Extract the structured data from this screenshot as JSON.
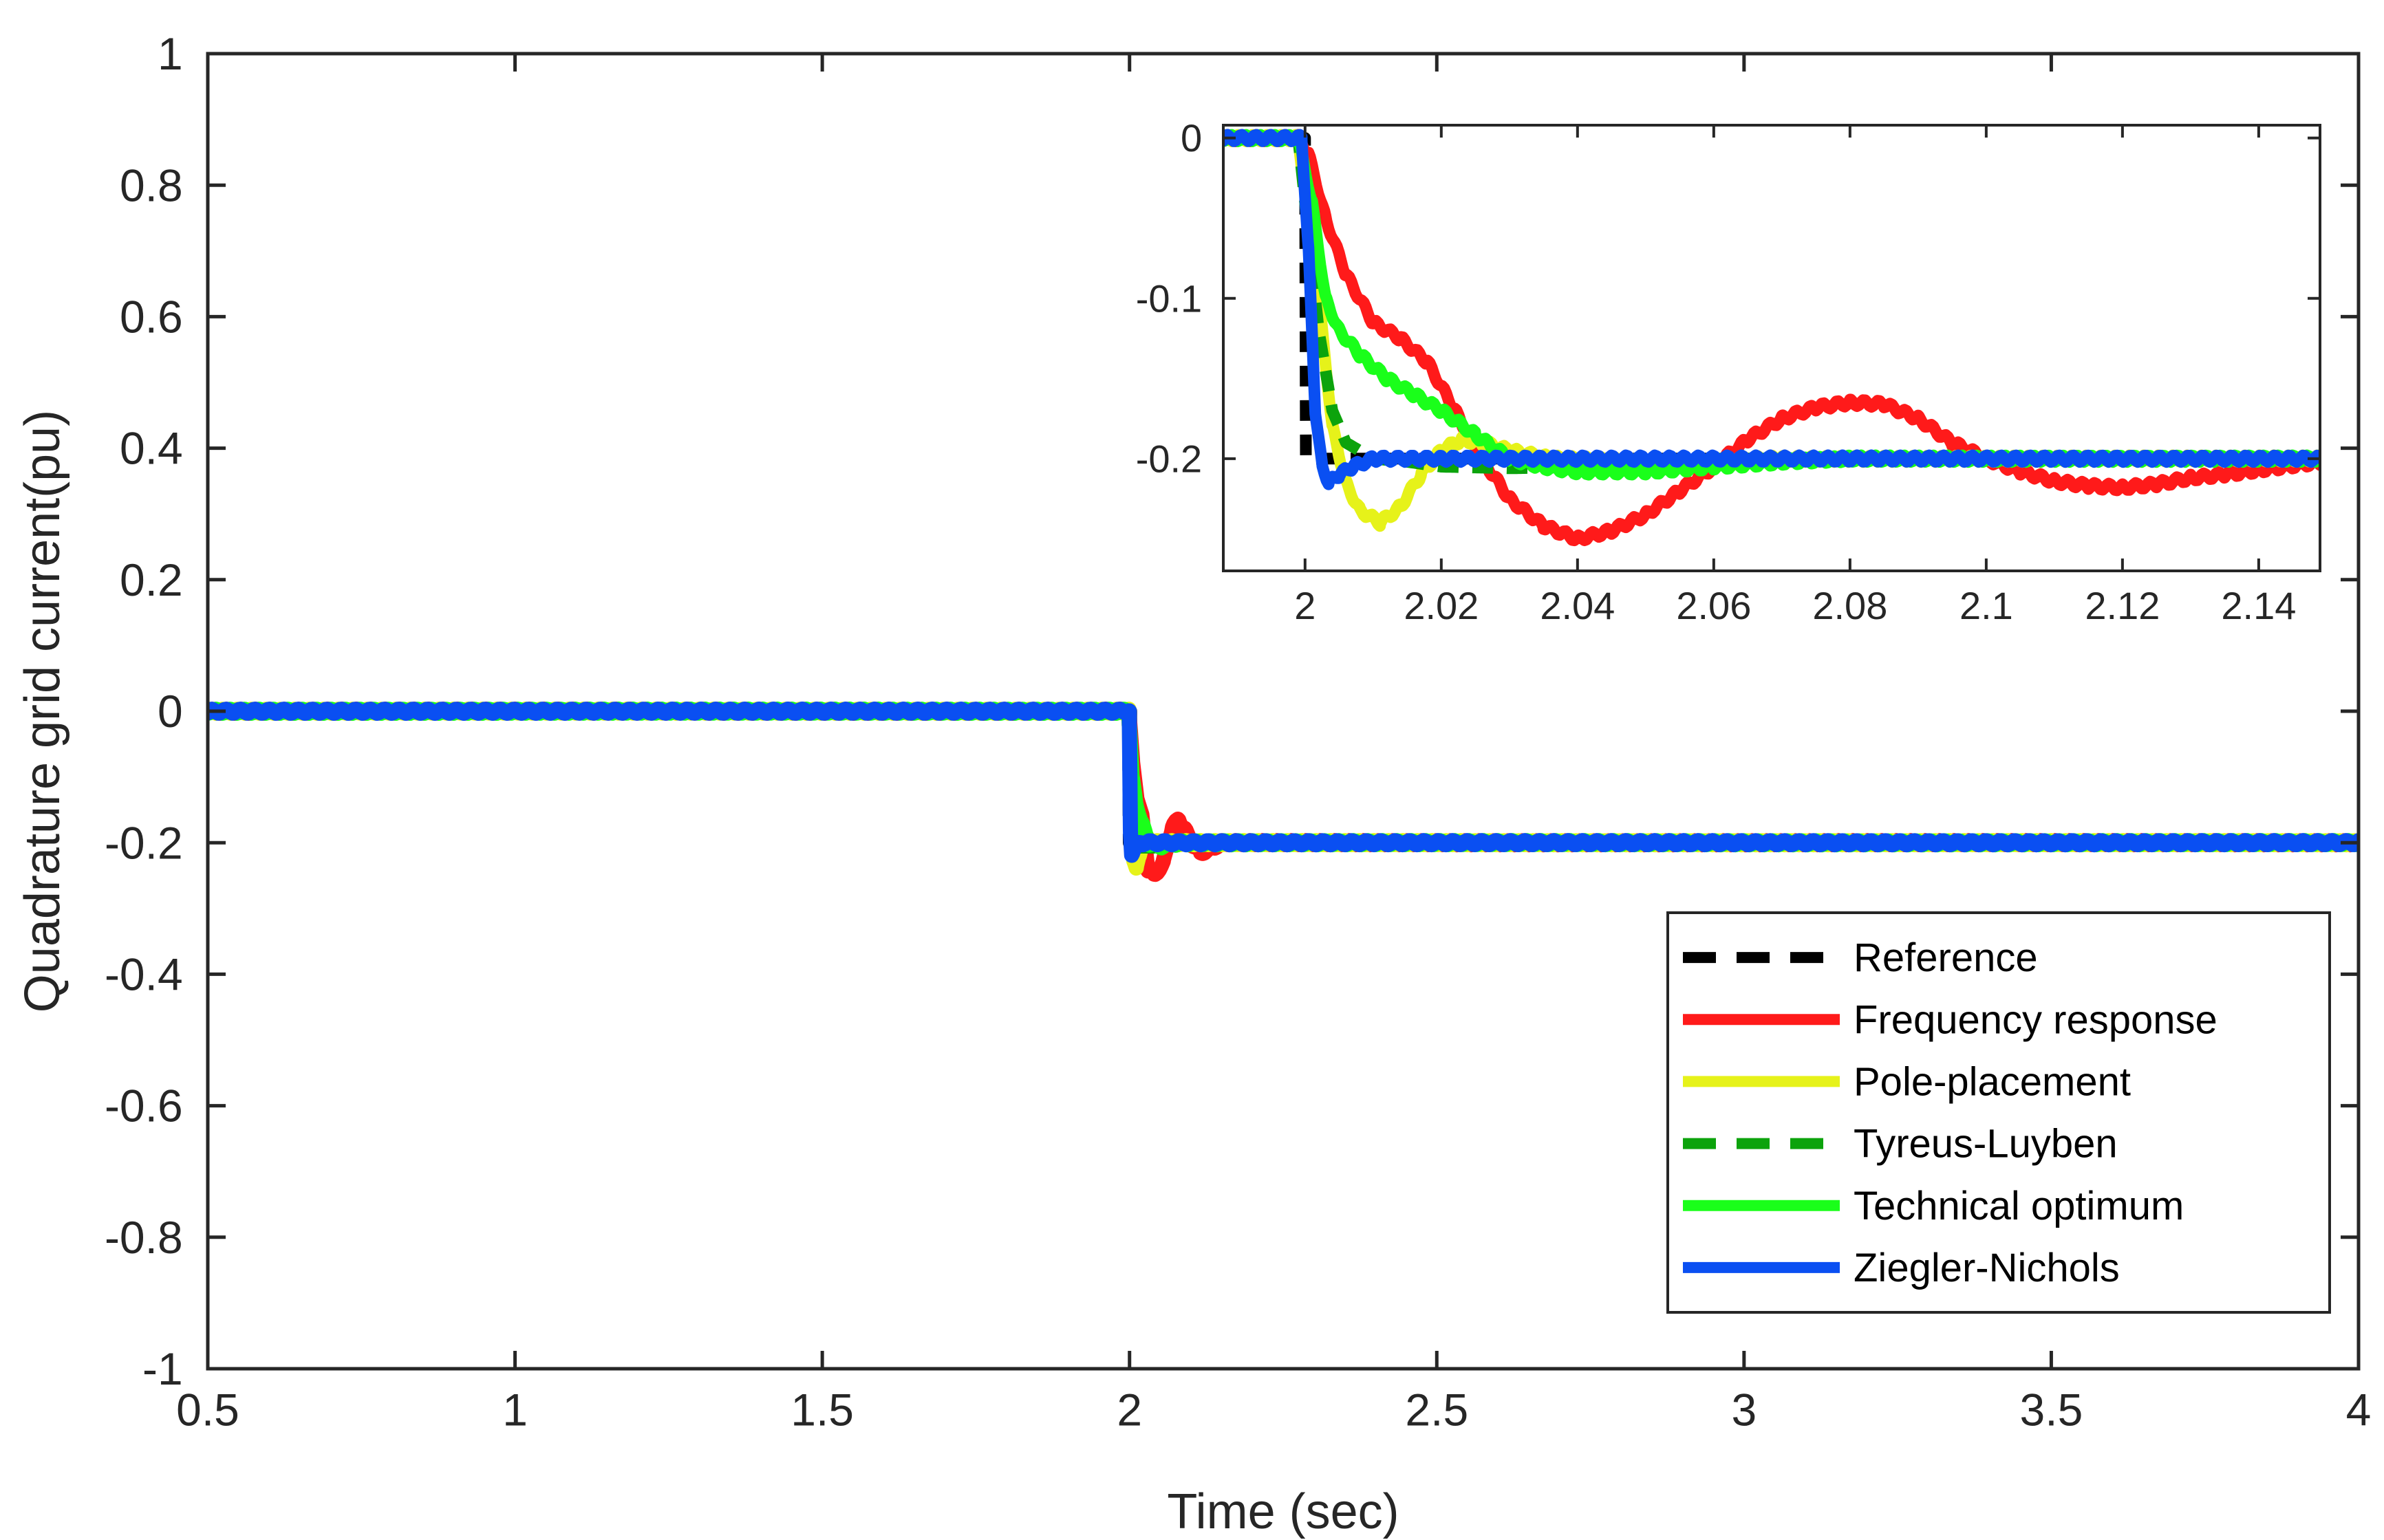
{
  "chart_data": [
    {
      "type": "line",
      "role": "main",
      "xlabel": "Time (sec)",
      "ylabel": "Quadrature grid current(pu)",
      "xlim": [
        0.5,
        4
      ],
      "ylim": [
        -1,
        1
      ],
      "xticks": [
        0.5,
        1,
        1.5,
        2,
        2.5,
        3,
        3.5,
        4
      ],
      "xtick_labels": [
        "0.5",
        "1",
        "1.5",
        "2",
        "2.5",
        "3",
        "3.5",
        "4"
      ],
      "yticks": [
        -1,
        -0.8,
        -0.6,
        -0.4,
        -0.2,
        0,
        0.2,
        0.4,
        0.6,
        0.8,
        1
      ],
      "ytick_labels": [
        "-1",
        "-0.8",
        "-0.6",
        "-0.4",
        "-0.2",
        "0",
        "0.2",
        "0.4",
        "0.6",
        "0.8",
        "1"
      ],
      "grid": false,
      "legend_position": "lower-right",
      "series": [
        {
          "name": "Reference",
          "color": "#000000",
          "dash": "dashed",
          "points": [
            [
              0.5,
              0
            ],
            [
              2,
              0
            ],
            [
              2,
              -0.2
            ],
            [
              4,
              -0.2
            ]
          ]
        },
        {
          "name": "Frequency response",
          "color": "#ff1a1a",
          "dash": "solid",
          "points": [
            [
              0.5,
              0
            ],
            [
              1.999,
              0
            ],
            [
              2.005,
              -0.08
            ],
            [
              2.012,
              -0.13
            ],
            [
              2.02,
              -0.16
            ],
            [
              2.03,
              -0.24
            ],
            [
              2.04,
              -0.25
            ],
            [
              2.055,
              -0.23
            ],
            [
              2.07,
              -0.175
            ],
            [
              2.08,
              -0.165
            ],
            [
              2.09,
              -0.18
            ],
            [
              2.1,
              -0.2
            ],
            [
              2.115,
              -0.215
            ],
            [
              2.13,
              -0.21
            ],
            [
              2.15,
              -0.2
            ],
            [
              2.2,
              -0.2
            ],
            [
              4,
              -0.2
            ]
          ]
        },
        {
          "name": "Pole-placement",
          "color": "#e6f21a",
          "dash": "solid",
          "points": [
            [
              0.5,
              0
            ],
            [
              1.999,
              0
            ],
            [
              2.004,
              -0.19
            ],
            [
              2.007,
              -0.225
            ],
            [
              2.011,
              -0.24
            ],
            [
              2.016,
              -0.22
            ],
            [
              2.022,
              -0.19
            ],
            [
              2.03,
              -0.195
            ],
            [
              2.04,
              -0.2
            ],
            [
              4,
              -0.2
            ]
          ]
        },
        {
          "name": "Tyreus-Luyben",
          "color": "#0ca30c",
          "dash": "dashed",
          "points": [
            [
              0.5,
              0
            ],
            [
              1.999,
              0
            ],
            [
              2.003,
              -0.15
            ],
            [
              2.006,
              -0.19
            ],
            [
              2.012,
              -0.2
            ],
            [
              2.02,
              -0.205
            ],
            [
              2.04,
              -0.205
            ],
            [
              2.06,
              -0.2
            ],
            [
              4,
              -0.2
            ]
          ]
        },
        {
          "name": "Technical optimum",
          "color": "#1aff1a",
          "dash": "solid",
          "points": [
            [
              0.5,
              0
            ],
            [
              1.999,
              0
            ],
            [
              2.004,
              -0.1
            ],
            [
              2.01,
              -0.14
            ],
            [
              2.02,
              -0.17
            ],
            [
              2.03,
              -0.2
            ],
            [
              2.05,
              -0.205
            ],
            [
              2.08,
              -0.2
            ],
            [
              4,
              -0.2
            ]
          ]
        },
        {
          "name": "Ziegler-Nichols",
          "color": "#0a4ff2",
          "dash": "solid",
          "points": [
            [
              0.5,
              0
            ],
            [
              1.9995,
              0
            ],
            [
              2.0015,
              -0.19
            ],
            [
              2.0035,
              -0.22
            ],
            [
              2.006,
              -0.21
            ],
            [
              2.01,
              -0.205
            ],
            [
              2.02,
              -0.2
            ],
            [
              4,
              -0.2
            ]
          ]
        }
      ]
    },
    {
      "type": "line",
      "role": "inset",
      "xlim": [
        1.988,
        2.149
      ],
      "ylim": [
        -0.27,
        0.008
      ],
      "xticks": [
        2,
        2.02,
        2.04,
        2.06,
        2.08,
        2.1,
        2.12,
        2.14
      ],
      "xtick_labels": [
        "2",
        "2.02",
        "2.04",
        "2.06",
        "2.08",
        "2.1",
        "2.12",
        "2.14"
      ],
      "yticks": [
        -0.2,
        -0.1,
        0
      ],
      "ytick_labels": [
        "-0.2",
        "-0.1",
        "0"
      ],
      "grid": false,
      "series": [
        {
          "name": "Reference",
          "color": "#000000",
          "dash": "dashed",
          "points": [
            [
              1.988,
              0
            ],
            [
              2,
              0
            ],
            [
              2,
              -0.2
            ],
            [
              2.149,
              -0.2
            ]
          ]
        },
        {
          "name": "Frequency response",
          "color": "#ff1a1a",
          "dash": "solid",
          "points": [
            [
              1.988,
              0
            ],
            [
              1.999,
              0
            ],
            [
              2.0005,
              -0.01
            ],
            [
              2.003,
              -0.05
            ],
            [
              2.006,
              -0.085
            ],
            [
              2.01,
              -0.115
            ],
            [
              2.014,
              -0.125
            ],
            [
              2.018,
              -0.14
            ],
            [
              2.022,
              -0.17
            ],
            [
              2.026,
              -0.2
            ],
            [
              2.03,
              -0.225
            ],
            [
              2.035,
              -0.242
            ],
            [
              2.04,
              -0.25
            ],
            [
              2.045,
              -0.245
            ],
            [
              2.05,
              -0.235
            ],
            [
              2.055,
              -0.22
            ],
            [
              2.06,
              -0.205
            ],
            [
              2.065,
              -0.188
            ],
            [
              2.07,
              -0.175
            ],
            [
              2.075,
              -0.168
            ],
            [
              2.08,
              -0.165
            ],
            [
              2.085,
              -0.166
            ],
            [
              2.09,
              -0.175
            ],
            [
              2.095,
              -0.19
            ],
            [
              2.1,
              -0.2
            ],
            [
              2.105,
              -0.208
            ],
            [
              2.11,
              -0.214
            ],
            [
              2.115,
              -0.217
            ],
            [
              2.12,
              -0.218
            ],
            [
              2.125,
              -0.216
            ],
            [
              2.13,
              -0.212
            ],
            [
              2.135,
              -0.21
            ],
            [
              2.14,
              -0.207
            ],
            [
              2.149,
              -0.202
            ]
          ]
        },
        {
          "name": "Pole-placement",
          "color": "#e6f21a",
          "dash": "solid",
          "points": [
            [
              1.988,
              0
            ],
            [
              1.999,
              0
            ],
            [
              2.002,
              -0.1
            ],
            [
              2.004,
              -0.18
            ],
            [
              2.006,
              -0.215
            ],
            [
              2.008,
              -0.232
            ],
            [
              2.011,
              -0.24
            ],
            [
              2.014,
              -0.23
            ],
            [
              2.017,
              -0.21
            ],
            [
              2.02,
              -0.195
            ],
            [
              2.023,
              -0.188
            ],
            [
              2.026,
              -0.19
            ],
            [
              2.03,
              -0.195
            ],
            [
              2.036,
              -0.2
            ],
            [
              2.05,
              -0.202
            ],
            [
              2.07,
              -0.2
            ],
            [
              2.149,
              -0.2
            ]
          ]
        },
        {
          "name": "Tyreus-Luyben",
          "color": "#0ca30c",
          "dash": "dashed",
          "points": [
            [
              1.988,
              0
            ],
            [
              1.999,
              0
            ],
            [
              2.002,
              -0.12
            ],
            [
              2.004,
              -0.17
            ],
            [
              2.006,
              -0.19
            ],
            [
              2.01,
              -0.2
            ],
            [
              2.015,
              -0.202
            ],
            [
              2.02,
              -0.205
            ],
            [
              2.03,
              -0.206
            ],
            [
              2.045,
              -0.205
            ],
            [
              2.06,
              -0.2
            ],
            [
              2.149,
              -0.2
            ]
          ]
        },
        {
          "name": "Technical optimum",
          "color": "#1aff1a",
          "dash": "solid",
          "points": [
            [
              1.988,
              0
            ],
            [
              1.999,
              0
            ],
            [
              2.001,
              -0.04
            ],
            [
              2.003,
              -0.1
            ],
            [
              2.005,
              -0.12
            ],
            [
              2.008,
              -0.135
            ],
            [
              2.012,
              -0.15
            ],
            [
              2.016,
              -0.16
            ],
            [
              2.02,
              -0.17
            ],
            [
              2.025,
              -0.185
            ],
            [
              2.03,
              -0.2
            ],
            [
              2.035,
              -0.205
            ],
            [
              2.04,
              -0.208
            ],
            [
              2.05,
              -0.208
            ],
            [
              2.06,
              -0.205
            ],
            [
              2.07,
              -0.202
            ],
            [
              2.08,
              -0.2
            ],
            [
              2.149,
              -0.2
            ]
          ]
        },
        {
          "name": "Ziegler-Nichols",
          "color": "#0a4ff2",
          "dash": "solid",
          "points": [
            [
              1.988,
              0
            ],
            [
              1.9995,
              0
            ],
            [
              2.0005,
              -0.07
            ],
            [
              2.0015,
              -0.17
            ],
            [
              2.0025,
              -0.205
            ],
            [
              2.0035,
              -0.215
            ],
            [
              2.005,
              -0.21
            ],
            [
              2.007,
              -0.205
            ],
            [
              2.01,
              -0.2
            ],
            [
              2.02,
              -0.2
            ],
            [
              2.149,
              -0.2
            ]
          ]
        }
      ]
    }
  ]
}
